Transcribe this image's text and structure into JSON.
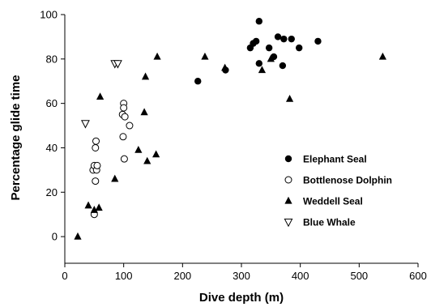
{
  "chart_data": {
    "type": "scatter",
    "xlabel": "Dive depth (m)",
    "ylabel": "Percentage glide time",
    "xlim": [
      0,
      600
    ],
    "ylim": [
      -12,
      100
    ],
    "x_ticks": [
      0,
      100,
      200,
      300,
      400,
      500,
      600
    ],
    "y_ticks": [
      0,
      20,
      40,
      60,
      80,
      100
    ],
    "grid": false,
    "legend_position": "right",
    "series": [
      {
        "name": "Elephant Seal",
        "marker": "filled-circle",
        "color": "#000000",
        "points": [
          [
            226,
            70
          ],
          [
            273,
            75
          ],
          [
            315,
            85
          ],
          [
            320,
            87
          ],
          [
            325,
            88
          ],
          [
            330,
            97
          ],
          [
            330,
            78
          ],
          [
            347,
            85
          ],
          [
            355,
            81
          ],
          [
            362,
            90
          ],
          [
            370,
            77
          ],
          [
            372,
            89
          ],
          [
            385,
            89
          ],
          [
            398,
            85
          ],
          [
            430,
            88
          ]
        ]
      },
      {
        "name": "Bottlenose Dolphin",
        "marker": "open-circle",
        "color": "#000000",
        "points": [
          [
            48,
            30
          ],
          [
            50,
            32
          ],
          [
            52,
            25
          ],
          [
            50,
            10
          ],
          [
            52,
            40
          ],
          [
            53,
            43
          ],
          [
            54,
            30
          ],
          [
            55,
            32
          ],
          [
            98,
            55
          ],
          [
            99,
            45
          ],
          [
            100,
            60
          ],
          [
            100,
            58
          ],
          [
            101,
            35
          ],
          [
            102,
            54
          ],
          [
            110,
            50
          ]
        ]
      },
      {
        "name": "Weddell Seal",
        "marker": "filled-triangle",
        "color": "#000000",
        "points": [
          [
            22,
            0
          ],
          [
            40,
            14
          ],
          [
            50,
            12
          ],
          [
            58,
            13
          ],
          [
            60,
            63
          ],
          [
            85,
            26
          ],
          [
            125,
            39
          ],
          [
            135,
            56
          ],
          [
            137,
            72
          ],
          [
            140,
            34
          ],
          [
            155,
            37
          ],
          [
            157,
            81
          ],
          [
            238,
            81
          ],
          [
            272,
            76
          ],
          [
            335,
            75
          ],
          [
            350,
            80
          ],
          [
            382,
            62
          ],
          [
            540,
            81
          ]
        ]
      },
      {
        "name": "Blue Whale",
        "marker": "open-inverted-triangle",
        "color": "#000000",
        "points": [
          [
            35,
            51
          ],
          [
            85,
            78
          ],
          [
            90,
            78
          ]
        ]
      }
    ]
  }
}
